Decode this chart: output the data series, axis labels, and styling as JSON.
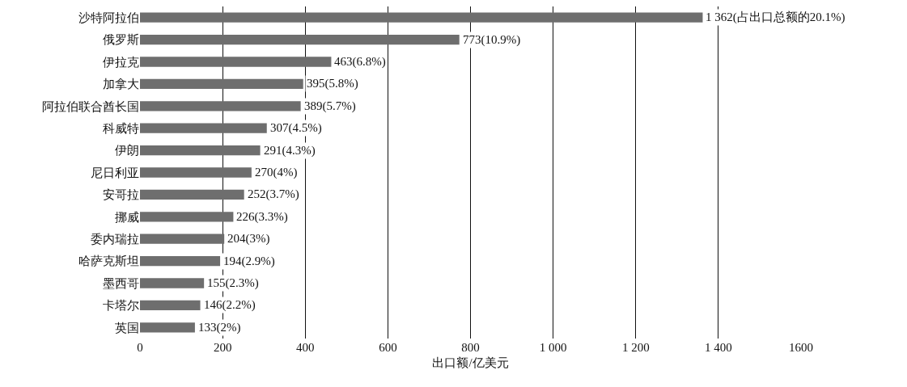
{
  "chart_data": {
    "type": "bar",
    "orientation": "horizontal",
    "xlabel": "出口额/亿美元",
    "categories": [
      "沙特阿拉伯",
      "俄罗斯",
      "伊拉克",
      "加拿大",
      "阿拉伯联合酋长国",
      "科威特",
      "伊朗",
      "尼日利亚",
      "安哥拉",
      "挪威",
      "委内瑞拉",
      "哈萨克斯坦",
      "墨西哥",
      "卡塔尔",
      "英国"
    ],
    "values": [
      1362,
      773,
      463,
      395,
      389,
      307,
      291,
      270,
      252,
      226,
      204,
      194,
      155,
      146,
      133
    ],
    "value_labels": [
      "1 362(占出口总额的20.1%)",
      "773(10.9%)",
      "463(6.8%)",
      "395(5.8%)",
      "389(5.7%)",
      "307(4.5%)",
      "291(4.3%)",
      "270(4%)",
      "252(3.7%)",
      "226(3.3%)",
      "204(3%)",
      "194(2.9%)",
      "155(2.3%)",
      "146(2.2%)",
      "133(2%)"
    ],
    "color": "#6e6e6e",
    "xlim": [
      0,
      1600
    ],
    "xticks": [
      0,
      200,
      400,
      600,
      800,
      {
        "value": 1000,
        "label": "1 000"
      },
      {
        "value": 1200,
        "label": "1 200"
      },
      {
        "value": 1400,
        "label": "1 400"
      },
      1600
    ],
    "grid": "x"
  }
}
